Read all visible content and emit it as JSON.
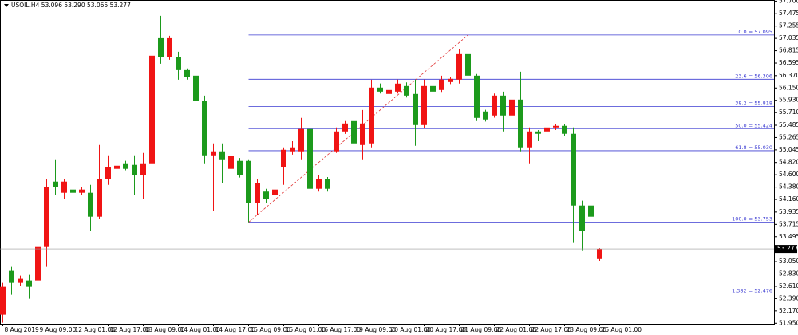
{
  "chart_data": {
    "type": "candlestick",
    "header": "USOIL,H4 53.096 53.290 53.065 53.277",
    "categories": [
      "8 Aug 2019",
      null,
      null,
      null,
      "9 Aug 09:00",
      null,
      null,
      null,
      "12 Aug 01:00",
      null,
      null,
      null,
      "12 Aug 17:00",
      null,
      null,
      null,
      "13 Aug 09:00",
      null,
      null,
      null,
      "14 Aug 01:00",
      null,
      null,
      null,
      "14 Aug 17:00",
      null,
      null,
      null,
      "15 Aug 09:00",
      null,
      null,
      null,
      "16 Aug 01:00",
      null,
      null,
      null,
      "16 Aug 17:00",
      null,
      null,
      null,
      "19 Aug 09:00",
      null,
      null,
      null,
      "20 Aug 01:00",
      null,
      null,
      null,
      "20 Aug 17:00",
      null,
      null,
      null,
      "21 Aug 09:00",
      null,
      null,
      null,
      "22 Aug 01:00",
      null,
      null,
      null,
      "22 Aug 17:00",
      null,
      null,
      null,
      "23 Aug 09:00",
      null,
      null,
      null,
      "26 Aug 01:00"
    ],
    "open": [
      52.102,
      52.885,
      52.671,
      52.714,
      52.714,
      53.311,
      54.478,
      54.279,
      54.336,
      54.279,
      54.279,
      53.852,
      54.521,
      54.706,
      54.805,
      54.777,
      54.592,
      54.805,
      57.038,
      56.697,
      56.697,
      56.469,
      56.37,
      55.915,
      54.947,
      55.019,
      54.706,
      54.848,
      54.848,
      54.094,
      54.3,
      54.236,
      54.734,
      55.019,
      55.019,
      55.417,
      54.35,
      54.521,
      55.019,
      55.374,
      55.559,
      55.132,
      55.161,
      56.157,
      56.043,
      56.085,
      56.185,
      56.043,
      55.488,
      56.185,
      56.114,
      56.256,
      56.299,
      56.754,
      56.37,
      55.73,
      55.659,
      56.014,
      55.659,
      55.943,
      55.09,
      55.374,
      55.374,
      55.445,
      55.474,
      55.332,
      54.051,
      54.051,
      53.096
    ],
    "high": [
      52.671,
      52.956,
      52.8,
      52.814,
      53.383,
      54.521,
      54.876,
      54.521,
      54.4,
      54.38,
      54.421,
      55.132,
      54.947,
      54.8,
      54.85,
      54.947,
      54.99,
      57.081,
      57.437,
      57.081,
      56.797,
      56.5,
      56.441,
      56.014,
      55.161,
      55.161,
      54.96,
      54.9,
      54.876,
      54.521,
      54.35,
      54.38,
      55.09,
      55.2,
      55.616,
      55.474,
      54.6,
      54.56,
      55.445,
      55.56,
      55.6,
      55.758,
      56.299,
      56.23,
      56.18,
      56.3,
      56.25,
      56.299,
      56.3,
      56.23,
      56.37,
      56.35,
      56.839,
      57.095,
      56.4,
      55.76,
      56.05,
      56.085,
      55.99,
      56.441,
      55.445,
      55.4,
      55.5,
      55.51,
      55.5,
      55.445,
      54.137,
      54.1,
      53.29
    ],
    "low": [
      51.959,
      52.458,
      52.62,
      52.387,
      52.458,
      52.956,
      54.236,
      54.165,
      54.22,
      54.24,
      53.596,
      53.81,
      54.421,
      54.68,
      54.68,
      54.236,
      54.165,
      54.236,
      56.583,
      56.654,
      56.299,
      56.3,
      55.801,
      54.805,
      53.952,
      54.45,
      54.65,
      54.55,
      53.753,
      53.881,
      54.1,
      54.15,
      54.421,
      54.96,
      54.876,
      54.236,
      54.3,
      54.3,
      54.99,
      55.33,
      55.1,
      54.876,
      55.09,
      56.05,
      56.0,
      56.05,
      55.98,
      55.118,
      55.43,
      56.05,
      56.08,
      56.22,
      56.228,
      56.299,
      55.56,
      55.55,
      55.62,
      55.374,
      55.6,
      55.019,
      54.805,
      55.2,
      55.34,
      55.4,
      55.3,
      53.383,
      53.241,
      53.72,
      53.065
    ],
    "close": [
      52.6,
      52.671,
      52.743,
      52.6,
      53.311,
      54.378,
      54.378,
      54.478,
      54.279,
      54.336,
      53.852,
      54.521,
      54.734,
      54.762,
      54.706,
      54.592,
      54.805,
      56.726,
      56.697,
      57.038,
      56.469,
      56.341,
      55.915,
      54.947,
      55.019,
      54.876,
      54.933,
      54.592,
      54.094,
      54.45,
      54.165,
      54.336,
      55.047,
      55.09,
      55.417,
      54.35,
      54.521,
      54.35,
      55.374,
      55.516,
      55.161,
      55.516,
      56.157,
      56.085,
      56.114,
      56.228,
      56.014,
      55.488,
      56.185,
      56.085,
      56.299,
      56.313,
      56.754,
      56.37,
      55.616,
      55.588,
      56.014,
      55.659,
      55.943,
      55.09,
      55.374,
      55.332,
      55.445,
      55.474,
      55.332,
      54.051,
      53.596,
      53.852,
      53.277
    ],
    "up_color": "#f01414",
    "down_color": "#1c9a1c",
    "ylim": [
      51.94,
      57.72
    ],
    "yticks": [
      {
        "value": 57.7,
        "label": "57.700"
      },
      57.475,
      57.255,
      57.035,
      56.815,
      56.595,
      {
        "value": 56.37,
        "label": "56.370"
      },
      {
        "value": 56.15,
        "label": "56.150"
      },
      {
        "value": 55.93,
        "label": "55.930"
      },
      {
        "value": 55.71,
        "label": "55.710"
      },
      55.485,
      55.265,
      55.045,
      {
        "value": 54.82,
        "label": "54.820"
      },
      {
        "value": 54.6,
        "label": "54.600"
      },
      {
        "value": 54.38,
        "label": "54.380"
      },
      {
        "value": 54.16,
        "label": "54.160"
      },
      53.935,
      53.715,
      53.495,
      {
        "value": 53.05,
        "label": "53.050"
      },
      {
        "value": 52.83,
        "label": "52.830"
      },
      {
        "value": 52.61,
        "label": "52.610"
      },
      {
        "value": 52.39,
        "label": "52.390"
      },
      {
        "value": 52.17,
        "label": "52.170"
      },
      {
        "value": 51.95,
        "label": "51.950"
      }
    ],
    "fib_color": "#3c3cd2",
    "fib_levels": [
      {
        "label": "0.0 = 57.095",
        "value": 57.095
      },
      {
        "label": "23.6 = 56.306",
        "value": 56.306
      },
      {
        "label": "38.2 = 55.818",
        "value": 55.818
      },
      {
        "label": "50.0 = 55.424",
        "value": 55.424
      },
      {
        "label": "61.8 = 55.030",
        "value": 55.03
      },
      {
        "label": "100.0 = 53.753",
        "value": 53.753
      },
      {
        "label": "1.382 = 52.476",
        "value": 52.476
      }
    ]
  }
}
